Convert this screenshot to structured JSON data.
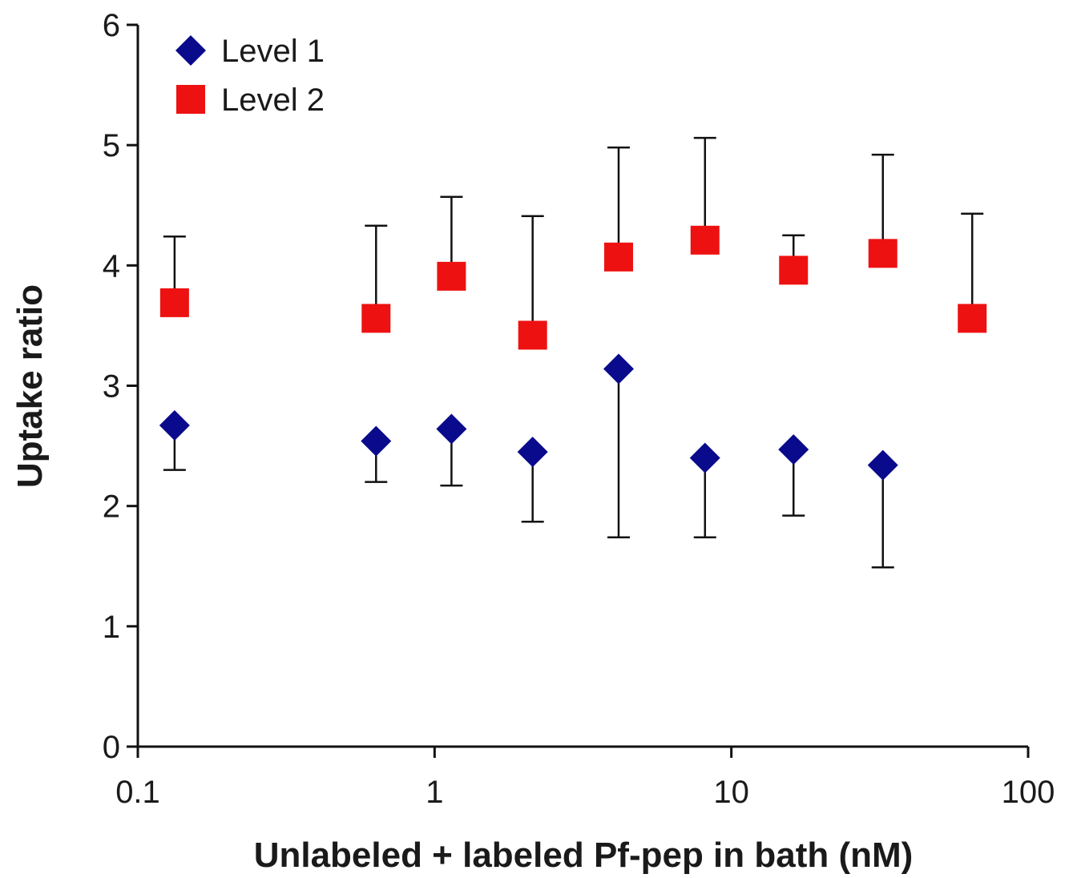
{
  "chart_data": {
    "type": "scatter",
    "xlabel": "Unlabeled + labeled Pf-pep in bath (nM)",
    "ylabel": "Uptake ratio",
    "xscale": "log",
    "xlim": [
      0.1,
      100
    ],
    "ylim": [
      0,
      6
    ],
    "xticks": [
      0.1,
      1,
      10,
      100
    ],
    "xtick_labels": [
      "0.1",
      "1",
      "10",
      "100"
    ],
    "yticks": [
      0,
      1,
      2,
      3,
      4,
      5,
      6
    ],
    "ytick_labels": [
      "0",
      "1",
      "2",
      "3",
      "4",
      "5",
      "6"
    ],
    "grid": false,
    "legend": {
      "placement": "top-left"
    },
    "series": [
      {
        "name": "Level 1",
        "marker": "diamond",
        "color": "#0a0a8c",
        "error_direction": "down",
        "points": [
          {
            "x": 0.133,
            "y": 2.67,
            "err": 0.37
          },
          {
            "x": 0.635,
            "y": 2.54,
            "err": 0.34
          },
          {
            "x": 1.14,
            "y": 2.64,
            "err": 0.47
          },
          {
            "x": 2.14,
            "y": 2.45,
            "err": 0.58
          },
          {
            "x": 4.17,
            "y": 3.14,
            "err": 1.4
          },
          {
            "x": 8.15,
            "y": 2.4,
            "err": 0.66
          },
          {
            "x": 16.2,
            "y": 2.47,
            "err": 0.55
          },
          {
            "x": 32.4,
            "y": 2.34,
            "err": 0.85
          }
        ]
      },
      {
        "name": "Level 2",
        "marker": "square",
        "color": "#ee1111",
        "error_direction": "up",
        "points": [
          {
            "x": 0.133,
            "y": 3.69,
            "err": 0.55
          },
          {
            "x": 0.635,
            "y": 3.56,
            "err": 0.77
          },
          {
            "x": 1.14,
            "y": 3.91,
            "err": 0.66
          },
          {
            "x": 2.14,
            "y": 3.42,
            "err": 0.99
          },
          {
            "x": 4.17,
            "y": 4.07,
            "err": 0.91
          },
          {
            "x": 8.15,
            "y": 4.21,
            "err": 0.85
          },
          {
            "x": 16.2,
            "y": 3.96,
            "err": 0.29
          },
          {
            "x": 32.4,
            "y": 4.1,
            "err": 0.82
          },
          {
            "x": 64.8,
            "y": 3.56,
            "err": 0.87
          }
        ]
      }
    ]
  }
}
